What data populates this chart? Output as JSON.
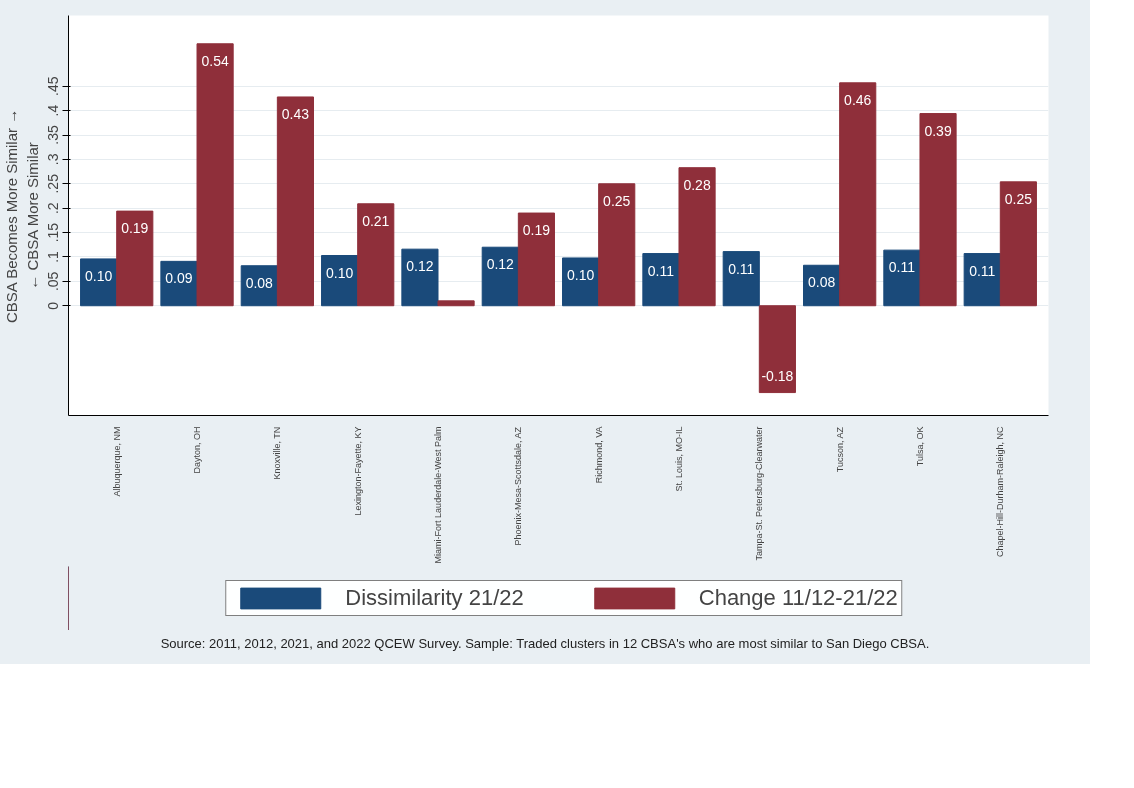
{
  "chart_data": {
    "type": "bar",
    "ylabel": "CBSA Becomes More Similar →\n← CBSA More Similar",
    "categories": [
      "Albuquerque, NM",
      "Dayton, OH",
      "Knoxville, TN",
      "Lexington-Fayette, KY",
      "Miami-Fort Lauderdale-West Palm",
      "Phoenix-Mesa-Scottsdale, AZ",
      "Richmond, VA",
      "St. Louis, MO-IL",
      "Tampa-St. Petersburg-Clearwater",
      "Tucson, AZ",
      "Tulsa, OK",
      "Chapel-Hill-Durham-Raleigh, NC"
    ],
    "series": [
      {
        "name": "Dissimilarity 21/22",
        "color": "#1a4a7a",
        "values": [
          0.096,
          0.091,
          0.082,
          0.103,
          0.116,
          0.12,
          0.098,
          0.107,
          0.111,
          0.083,
          0.114,
          0.107
        ],
        "value_labels": [
          "0.10",
          "0.09",
          "0.08",
          "0.10",
          "0.12",
          "0.12",
          "0.10",
          "0.11",
          "0.11",
          "0.08",
          "0.11",
          "0.11"
        ]
      },
      {
        "name": "Change 11/12-21/22",
        "color": "#8f2f3a",
        "values": [
          0.194,
          0.537,
          0.428,
          0.209,
          0.01,
          0.19,
          0.25,
          0.283,
          -0.178,
          0.457,
          0.394,
          0.254
        ],
        "value_labels": [
          "0.19",
          "0.54",
          "0.43",
          "0.21",
          null,
          "0.19",
          "0.25",
          "0.28",
          "-0.18",
          "0.46",
          "0.39",
          "0.25"
        ]
      }
    ],
    "ylim": [
      -0.225,
      0.595
    ],
    "yticks": [
      0,
      {
        "value": 0.05,
        "label": ".05"
      },
      {
        "value": 0.1,
        "label": ".1"
      },
      {
        "value": 0.15,
        "label": ".15"
      },
      {
        "value": 0.2,
        "label": ".2"
      },
      {
        "value": 0.25,
        "label": ".25"
      },
      {
        "value": 0.3,
        "label": ".3"
      },
      {
        "value": 0.35,
        "label": ".35"
      },
      {
        "value": 0.4,
        "label": ".4"
      },
      {
        "value": 0.45,
        "label": ".45"
      }
    ],
    "grid": "y",
    "legend": "bottom",
    "annotations": [
      "Source: 2011, 2012, 2021, and 2022 QCEW Survey. Sample: Traded clusters in 12 CBSA's who are most similar to San Diego CBSA."
    ]
  }
}
